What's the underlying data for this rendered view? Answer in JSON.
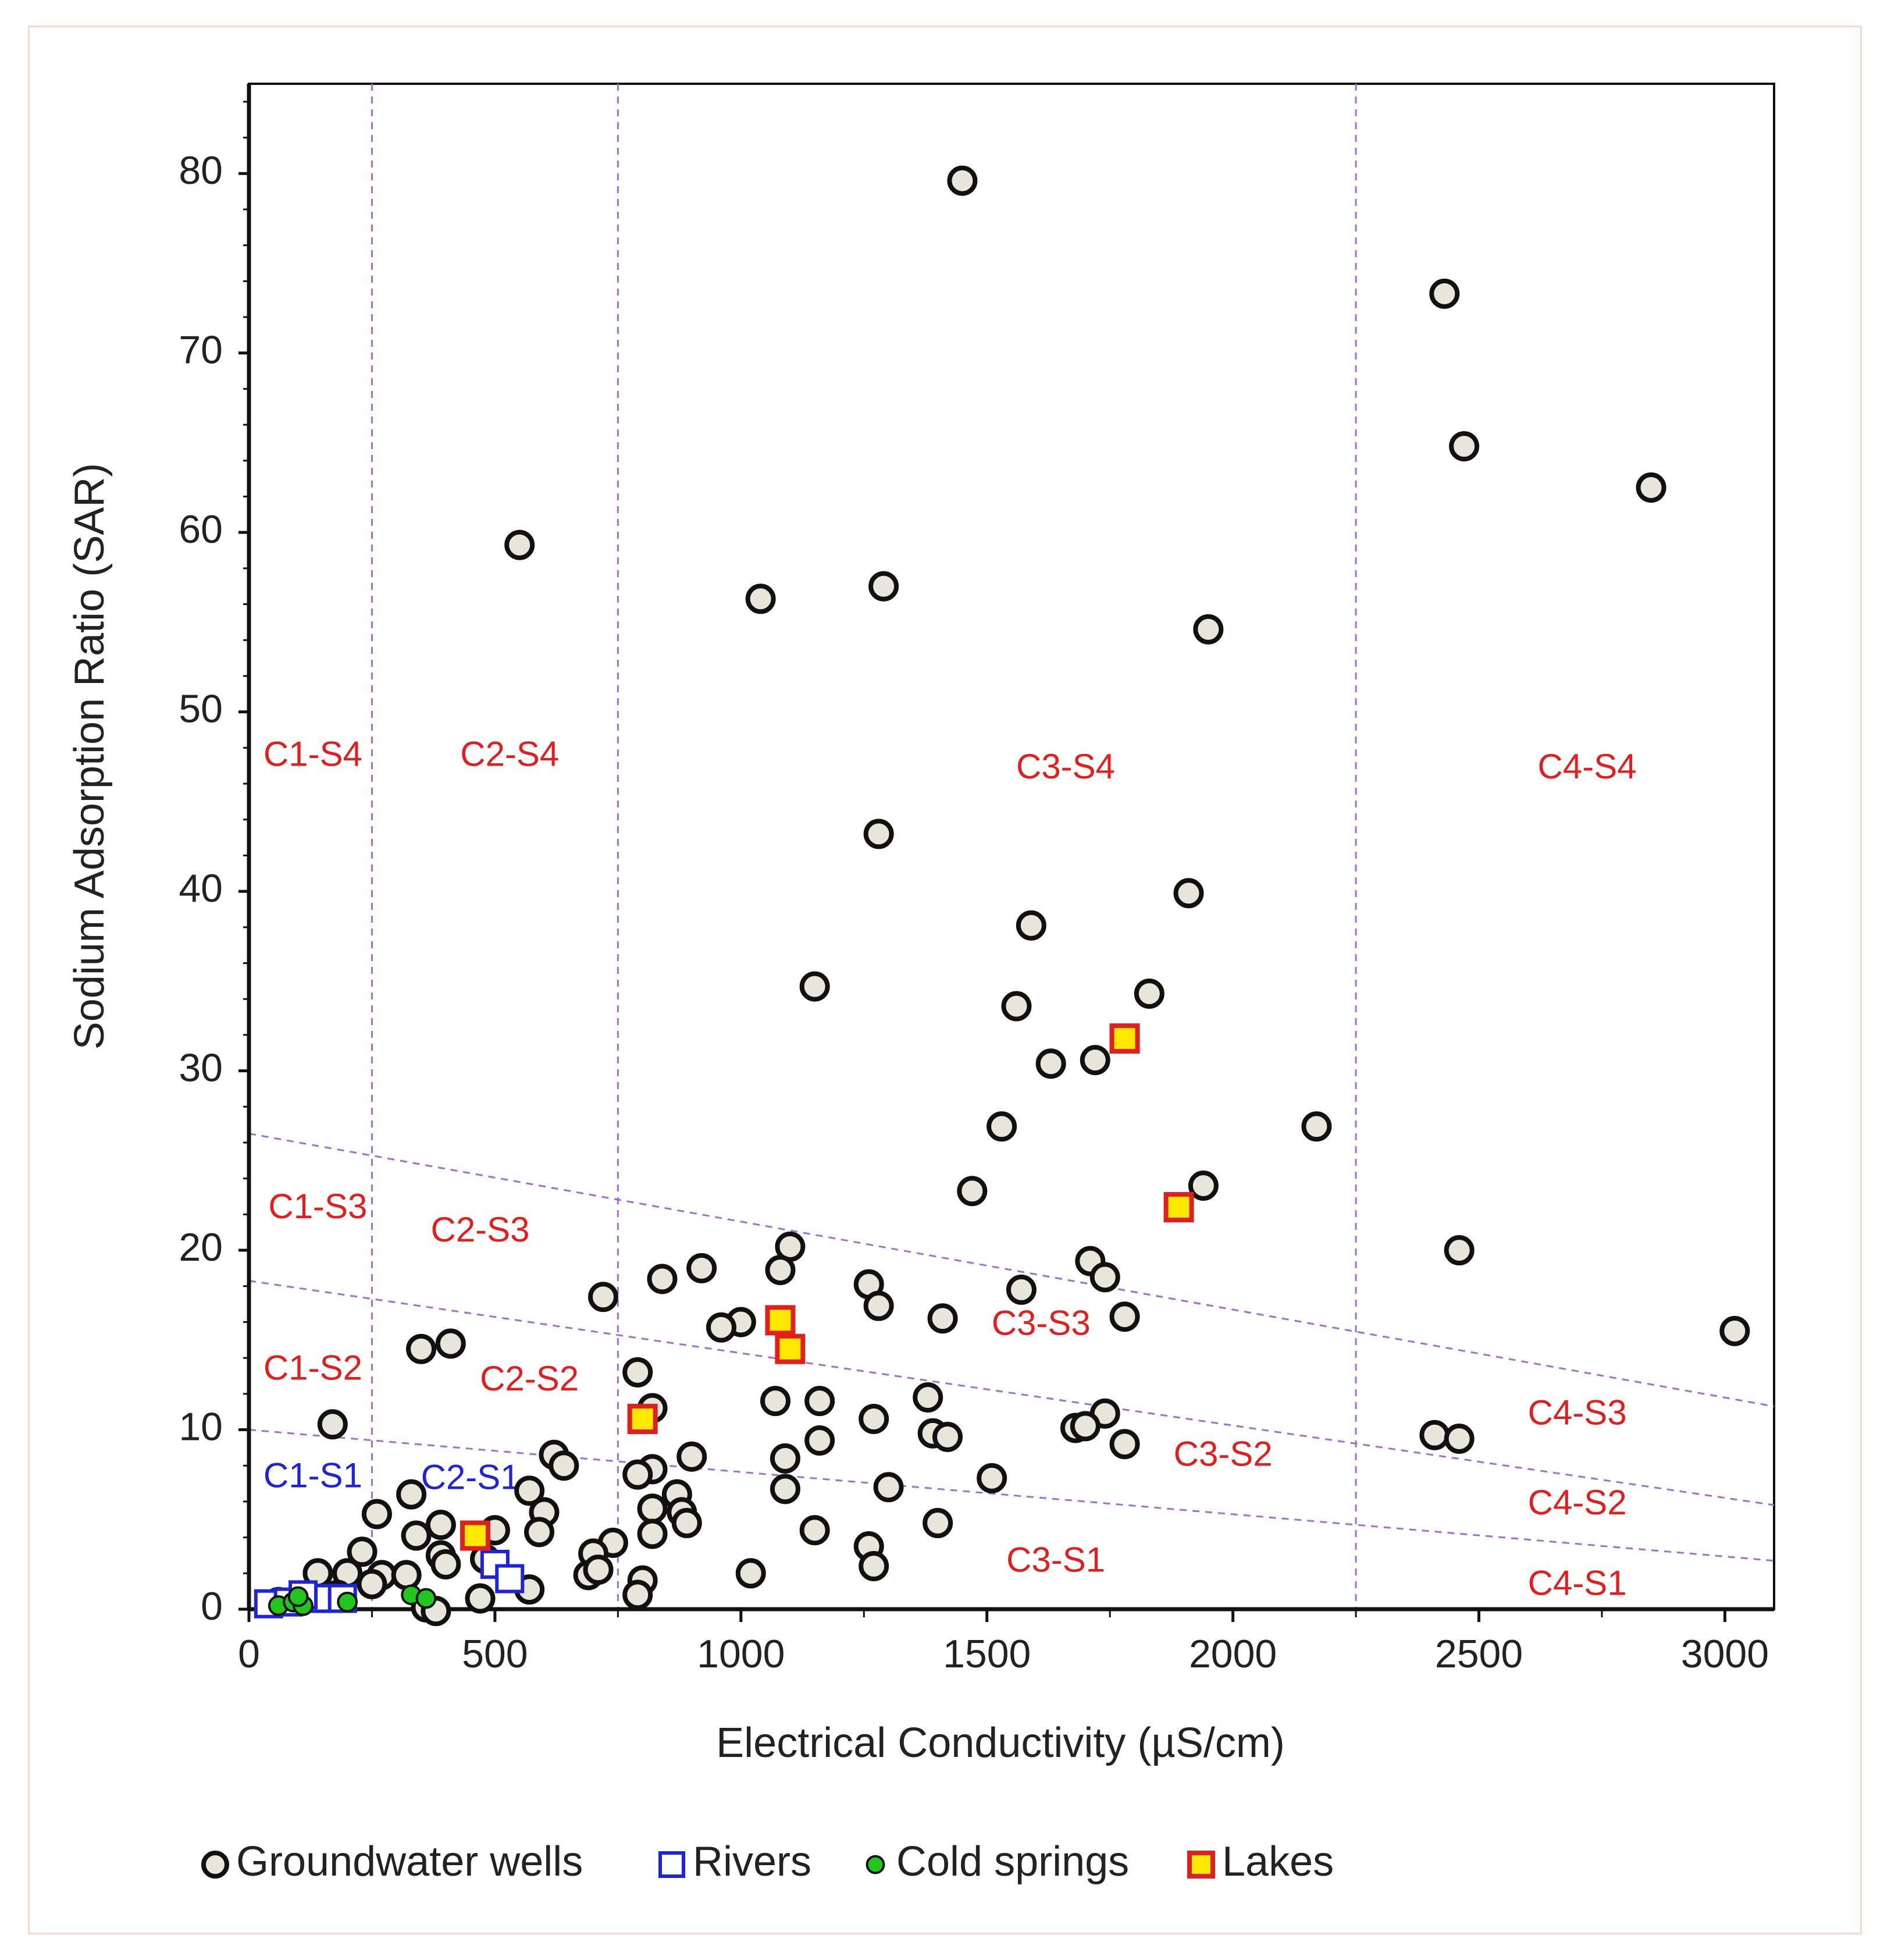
{
  "chart_data": {
    "type": "scatter",
    "title": "",
    "xlabel": "Electrical Conductivity  (µS/cm)",
    "ylabel": "Sodium Adsorption Ratio (SAR)",
    "xlim": [
      0,
      3100
    ],
    "ylim": [
      0,
      85
    ],
    "xticks": [
      "0",
      "500",
      "1000",
      "1500",
      "2000",
      "2500",
      "3000"
    ],
    "xtick_values": [
      0,
      500,
      1000,
      1500,
      2000,
      2500,
      3000
    ],
    "yticks": [
      "0",
      "10",
      "20",
      "30",
      "40",
      "50",
      "60",
      "70",
      "80"
    ],
    "ytick_values": [
      0,
      10,
      20,
      30,
      40,
      50,
      60,
      70,
      80
    ],
    "grid": false,
    "legend_position": "bottom",
    "boundaries": {
      "vertical_x": [
        250,
        750,
        2250
      ],
      "sloped_lines": [
        {
          "x": [
            0,
            3100
          ],
          "y": [
            26.5,
            11.3
          ]
        },
        {
          "x": [
            0,
            3100
          ],
          "y": [
            18.3,
            5.8
          ]
        },
        {
          "x": [
            0,
            3100
          ],
          "y": [
            10.0,
            2.7
          ]
        }
      ]
    },
    "zone_labels": [
      {
        "text": "C1-S4",
        "x": 130,
        "y": 47.5,
        "color": "#e0201e"
      },
      {
        "text": "C2-S4",
        "x": 530,
        "y": 47.5,
        "color": "#e0201e"
      },
      {
        "text": "C3-S4",
        "x": 1660,
        "y": 46.8,
        "color": "#e0201e"
      },
      {
        "text": "C4-S4",
        "x": 2720,
        "y": 46.8,
        "color": "#e0201e"
      },
      {
        "text": "C1-S3",
        "x": 140,
        "y": 22.3,
        "color": "#e0201e"
      },
      {
        "text": "C2-S3",
        "x": 470,
        "y": 21.0,
        "color": "#e0201e"
      },
      {
        "text": "C3-S3",
        "x": 1610,
        "y": 15.8,
        "color": "#e0201e"
      },
      {
        "text": "C4-S3",
        "x": 2700,
        "y": 10.8,
        "color": "#e0201e"
      },
      {
        "text": "C1-S2",
        "x": 130,
        "y": 13.3,
        "color": "#e0201e"
      },
      {
        "text": "C2-S2",
        "x": 570,
        "y": 12.7,
        "color": "#e0201e"
      },
      {
        "text": "C3-S2",
        "x": 1980,
        "y": 8.5,
        "color": "#e0201e"
      },
      {
        "text": "C4-S2",
        "x": 2700,
        "y": 5.8,
        "color": "#e0201e"
      },
      {
        "text": "C1-S1",
        "x": 130,
        "y": 7.3,
        "color": "#1f24d6"
      },
      {
        "text": "C2-S1",
        "x": 450,
        "y": 7.2,
        "color": "#1f24d6"
      },
      {
        "text": "C3-S1",
        "x": 1640,
        "y": 2.6,
        "color": "#e0201e"
      },
      {
        "text": "C4-S1",
        "x": 2700,
        "y": 1.3,
        "color": "#e0201e"
      }
    ],
    "series": [
      {
        "name": "Groundwater wells",
        "marker": "circle",
        "fill": "#e8e6da",
        "stroke": "#111111",
        "points": [
          [
            1450,
            79.6
          ],
          [
            2430,
            73.3
          ],
          [
            2470,
            64.8
          ],
          [
            2850,
            62.5
          ],
          [
            550,
            59.3
          ],
          [
            1290,
            57.0
          ],
          [
            1040,
            56.3
          ],
          [
            1950,
            54.6
          ],
          [
            1280,
            43.2
          ],
          [
            1910,
            39.9
          ],
          [
            1590,
            38.1
          ],
          [
            1150,
            34.7
          ],
          [
            1830,
            34.3
          ],
          [
            1560,
            33.6
          ],
          [
            1630,
            30.4
          ],
          [
            1720,
            30.6
          ],
          [
            1530,
            26.9
          ],
          [
            2170,
            26.9
          ],
          [
            1470,
            23.3
          ],
          [
            1940,
            23.6
          ],
          [
            2460,
            20.0
          ],
          [
            1100,
            20.2
          ],
          [
            1710,
            19.4
          ],
          [
            1740,
            18.5
          ],
          [
            920,
            19.0
          ],
          [
            1080,
            18.9
          ],
          [
            840,
            18.4
          ],
          [
            1260,
            18.1
          ],
          [
            1570,
            17.8
          ],
          [
            720,
            17.4
          ],
          [
            1280,
            16.9
          ],
          [
            1780,
            16.3
          ],
          [
            1410,
            16.2
          ],
          [
            1000,
            16.0
          ],
          [
            960,
            15.7
          ],
          [
            3020,
            15.5
          ],
          [
            410,
            14.8
          ],
          [
            350,
            14.5
          ],
          [
            790,
            13.2
          ],
          [
            1070,
            11.6
          ],
          [
            1160,
            11.6
          ],
          [
            1380,
            11.8
          ],
          [
            820,
            11.2
          ],
          [
            1740,
            10.9
          ],
          [
            1270,
            10.6
          ],
          [
            170,
            10.3
          ],
          [
            1680,
            10.1
          ],
          [
            1700,
            10.2
          ],
          [
            1390,
            9.8
          ],
          [
            1420,
            9.6
          ],
          [
            2410,
            9.7
          ],
          [
            2460,
            9.5
          ],
          [
            1160,
            9.4
          ],
          [
            1780,
            9.2
          ],
          [
            620,
            8.6
          ],
          [
            900,
            8.5
          ],
          [
            1090,
            8.4
          ],
          [
            640,
            8.0
          ],
          [
            820,
            7.8
          ],
          [
            790,
            7.5
          ],
          [
            1510,
            7.3
          ],
          [
            1300,
            6.8
          ],
          [
            1090,
            6.7
          ],
          [
            570,
            6.6
          ],
          [
            330,
            6.4
          ],
          [
            870,
            6.4
          ],
          [
            820,
            5.6
          ],
          [
            880,
            5.4
          ],
          [
            600,
            5.4
          ],
          [
            260,
            5.3
          ],
          [
            390,
            4.7
          ],
          [
            890,
            4.8
          ],
          [
            1400,
            4.8
          ],
          [
            500,
            4.4
          ],
          [
            1150,
            4.4
          ],
          [
            340,
            4.1
          ],
          [
            590,
            4.3
          ],
          [
            820,
            4.2
          ],
          [
            740,
            3.7
          ],
          [
            1260,
            3.5
          ],
          [
            230,
            3.2
          ],
          [
            700,
            3.1
          ],
          [
            390,
            3.0
          ],
          [
            480,
            2.8
          ],
          [
            400,
            2.5
          ],
          [
            1270,
            2.4
          ],
          [
            140,
            2.0
          ],
          [
            200,
            2.0
          ],
          [
            270,
            1.9
          ],
          [
            320,
            1.9
          ],
          [
            1020,
            2.0
          ],
          [
            690,
            1.9
          ],
          [
            710,
            2.2
          ],
          [
            800,
            1.6
          ],
          [
            250,
            1.4
          ],
          [
            570,
            1.1
          ],
          [
            790,
            0.8
          ],
          [
            470,
            0.6
          ],
          [
            180,
            0.8
          ],
          [
            110,
            0.6
          ],
          [
            60,
            0.4
          ],
          [
            360,
            0.1
          ],
          [
            380,
            -0.1
          ]
        ]
      },
      {
        "name": "Rivers",
        "marker": "square-open",
        "fill": "#ffffff",
        "stroke": "#1f24d6",
        "points": [
          [
            40,
            0.3
          ],
          [
            80,
            0.4
          ],
          [
            150,
            0.6
          ],
          [
            190,
            0.6
          ],
          [
            500,
            2.5
          ],
          [
            530,
            1.7
          ],
          [
            110,
            0.8
          ]
        ]
      },
      {
        "name": "Cold springs",
        "marker": "circle-filled",
        "fill": "#22c51e",
        "stroke": "#111111",
        "points": [
          [
            60,
            0.2
          ],
          [
            90,
            0.4
          ],
          [
            110,
            0.2
          ],
          [
            200,
            0.4
          ],
          [
            330,
            0.8
          ],
          [
            360,
            0.6
          ],
          [
            100,
            0.7
          ]
        ]
      },
      {
        "name": "Lakes",
        "marker": "square-filled",
        "fill": "#ffe800",
        "stroke": "#e0201e",
        "points": [
          [
            1780,
            31.8
          ],
          [
            1890,
            22.4
          ],
          [
            1080,
            16.1
          ],
          [
            1100,
            14.5
          ],
          [
            800,
            10.6
          ],
          [
            460,
            4.1
          ]
        ]
      }
    ]
  }
}
